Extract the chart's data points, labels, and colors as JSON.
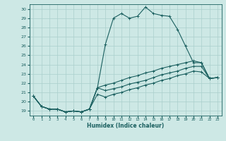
{
  "xlabel": "Humidex (Indice chaleur)",
  "background_color": "#cde8e5",
  "grid_color": "#aacfcc",
  "line_color": "#1a5f5f",
  "xlim": [
    -0.5,
    23.5
  ],
  "ylim": [
    18.5,
    30.5
  ],
  "xticks": [
    0,
    1,
    2,
    3,
    4,
    5,
    6,
    7,
    8,
    9,
    10,
    11,
    12,
    13,
    14,
    15,
    16,
    17,
    18,
    19,
    20,
    21,
    22,
    23
  ],
  "yticks": [
    19,
    20,
    21,
    22,
    23,
    24,
    25,
    26,
    27,
    28,
    29,
    30
  ],
  "series": [
    [
      20.6,
      19.5,
      19.2,
      19.2,
      18.9,
      19.0,
      18.9,
      19.2,
      21.5,
      26.2,
      29.0,
      29.5,
      29.0,
      29.2,
      30.2,
      29.5,
      29.3,
      29.2,
      27.8,
      26.0,
      24.2,
      24.2,
      22.5,
      22.6
    ],
    [
      20.6,
      19.5,
      19.2,
      19.2,
      18.9,
      19.0,
      18.9,
      19.2,
      21.5,
      21.8,
      22.0,
      22.3,
      22.6,
      22.8,
      23.1,
      23.3,
      23.6,
      23.8,
      24.0,
      24.2,
      24.4,
      24.2,
      22.5,
      22.6
    ],
    [
      20.6,
      19.5,
      19.2,
      19.2,
      18.9,
      19.0,
      18.9,
      19.2,
      21.5,
      21.2,
      21.4,
      21.6,
      21.9,
      22.1,
      22.3,
      22.6,
      22.9,
      23.1,
      23.3,
      23.6,
      23.8,
      23.8,
      22.5,
      22.6
    ],
    [
      20.6,
      19.5,
      19.2,
      19.2,
      18.9,
      19.0,
      18.9,
      19.2,
      20.8,
      20.5,
      20.8,
      21.0,
      21.3,
      21.5,
      21.8,
      22.0,
      22.3,
      22.5,
      22.8,
      23.0,
      23.3,
      23.2,
      22.5,
      22.6
    ]
  ]
}
